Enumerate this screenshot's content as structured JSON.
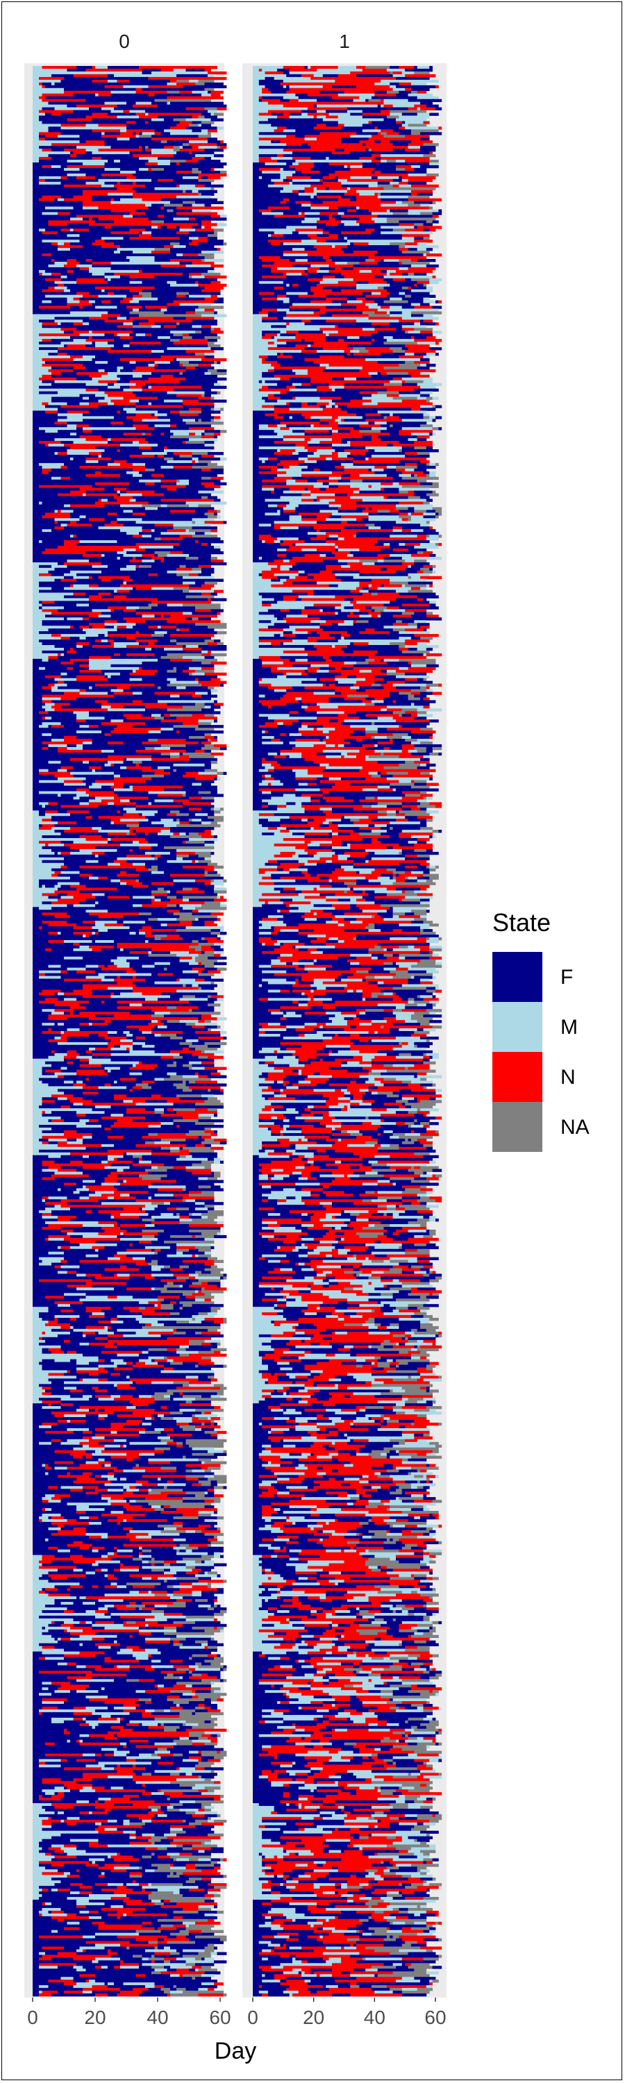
{
  "chart_data": {
    "type": "heatmap",
    "title": "",
    "xlabel": "Day",
    "ylabel": "",
    "x_range": [
      0,
      62
    ],
    "x_ticks": [
      0,
      20,
      40,
      60
    ],
    "x_tick_labels": [
      "0",
      "20",
      "40",
      "60"
    ],
    "grid": false,
    "facets": [
      "0",
      "1"
    ],
    "legend": {
      "title": "State",
      "placement": "right",
      "entries": [
        {
          "label": "F",
          "color": "#00008b"
        },
        {
          "label": "M",
          "color": "#add8e6"
        },
        {
          "label": "N",
          "color": "#ff0000"
        },
        {
          "label": "NA",
          "color": "#808080"
        }
      ]
    },
    "rows_per_panel_approx": 700,
    "description_values": {
      "initial_state_days": [
        0,
        3
      ],
      "panel_0_dominant_states": [
        "F",
        "N",
        "M"
      ],
      "panel_1_dominant_states": [
        "N",
        "F",
        "M",
        "NA"
      ]
    }
  }
}
